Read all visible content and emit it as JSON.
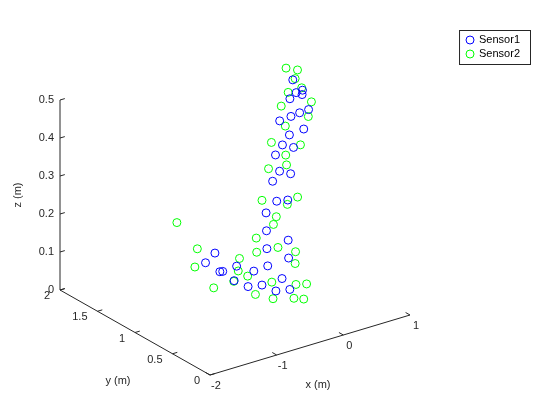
{
  "chart_data": {
    "type": "scatter3d",
    "xlabel": "x (m)",
    "ylabel": "y (m)",
    "zlabel": "z (m)",
    "xlim": [
      -2,
      1
    ],
    "xticks": [
      -2,
      -1,
      0,
      1
    ],
    "ylim": [
      0,
      2
    ],
    "yticks": [
      0,
      0.5,
      1,
      1.5,
      2
    ],
    "zlim": [
      0,
      0.5
    ],
    "zticks": [
      0,
      0.1,
      0.2,
      0.3,
      0.4,
      0.5
    ],
    "grid": false,
    "legend": "northeast",
    "series": [
      {
        "name": "Sensor1",
        "color": "#0000ff",
        "marker": "circle",
        "values": [
          [
            -0.3,
            1.2,
            0.02
          ],
          [
            -0.2,
            1.1,
            0.01
          ],
          [
            -0.1,
            1.0,
            0.02
          ],
          [
            0,
            0.9,
            0.01
          ],
          [
            0.1,
            0.8,
            0.02
          ],
          [
            -0.35,
            1.35,
            0.03
          ],
          [
            -0.25,
            1.4,
            0.02
          ],
          [
            -0.15,
            1.3,
            0.04
          ],
          [
            0,
            1.2,
            0.03
          ],
          [
            0.1,
            1.1,
            0.05
          ],
          [
            0.15,
            0.95,
            0.03
          ],
          [
            -0.4,
            1.5,
            0.04
          ],
          [
            -0.2,
            1.55,
            0.05
          ],
          [
            0.2,
            1.2,
            0.08
          ],
          [
            0.25,
            1.25,
            0.12
          ],
          [
            0.3,
            1.3,
            0.16
          ],
          [
            0.35,
            1.2,
            0.2
          ],
          [
            0.4,
            1.3,
            0.24
          ],
          [
            0.45,
            1.25,
            0.27
          ],
          [
            0.5,
            1.35,
            0.3
          ],
          [
            0.55,
            1.3,
            0.33
          ],
          [
            0.6,
            1.25,
            0.36
          ],
          [
            0.62,
            1.4,
            0.38
          ],
          [
            0.68,
            1.3,
            0.4
          ],
          [
            0.7,
            1.2,
            0.42
          ],
          [
            0.72,
            1.35,
            0.44
          ],
          [
            0.76,
            1.3,
            0.46
          ],
          [
            0.8,
            1.25,
            0.47
          ],
          [
            0.82,
            1.4,
            0.48
          ],
          [
            0.85,
            1.3,
            0.45
          ],
          [
            0.78,
            1.15,
            0.43
          ],
          [
            0.65,
            1.1,
            0.39
          ],
          [
            0.55,
            1.15,
            0.34
          ],
          [
            0.45,
            1.1,
            0.28
          ],
          [
            0.35,
            1.05,
            0.22
          ],
          [
            0.3,
            1.0,
            0.12
          ],
          [
            0.25,
            0.95,
            0.08
          ]
        ]
      },
      {
        "name": "Sensor2",
        "color": "#00ff00",
        "marker": "circle",
        "values": [
          [
            -0.5,
            1.3,
            0.0
          ],
          [
            -0.45,
            1.6,
            0.02
          ],
          [
            -0.3,
            1.7,
            0.05
          ],
          [
            -0.2,
            1.0,
            0.0
          ],
          [
            -0.1,
            0.85,
            0.0
          ],
          [
            0.05,
            0.7,
            0.01
          ],
          [
            0.2,
            0.7,
            0.0
          ],
          [
            0.25,
            0.85,
            0.02
          ],
          [
            -0.35,
            1.1,
            0.06
          ],
          [
            -0.15,
            1.15,
            0.03
          ],
          [
            -0.05,
            1.35,
            0.05
          ],
          [
            0.1,
            1.25,
            0.07
          ],
          [
            0.05,
            1.0,
            0.02
          ],
          [
            -0.25,
            1.25,
            0.01
          ],
          [
            -0.5,
            1.8,
            0.12
          ],
          [
            0.3,
            0.9,
            0.1
          ],
          [
            0.15,
            1.3,
            0.1
          ],
          [
            0.2,
            1.05,
            0.1
          ],
          [
            0.3,
            1.2,
            0.14
          ],
          [
            0.35,
            1.4,
            0.18
          ],
          [
            0.4,
            1.1,
            0.2
          ],
          [
            0.45,
            1.4,
            0.26
          ],
          [
            0.5,
            1.2,
            0.29
          ],
          [
            0.55,
            1.45,
            0.32
          ],
          [
            0.6,
            1.1,
            0.35
          ],
          [
            0.65,
            1.35,
            0.37
          ],
          [
            0.7,
            1.45,
            0.41
          ],
          [
            0.72,
            1.1,
            0.42
          ],
          [
            0.75,
            1.4,
            0.45
          ],
          [
            0.8,
            1.35,
            0.49
          ],
          [
            0.83,
            1.5,
            0.5
          ],
          [
            0.78,
            1.3,
            0.52
          ],
          [
            0.88,
            1.2,
            0.44
          ],
          [
            0.9,
            1.35,
            0.46
          ],
          [
            0.6,
            1.3,
            0.3
          ],
          [
            0.4,
            1.25,
            0.15
          ],
          [
            0.5,
            1.05,
            0.22
          ],
          [
            0.35,
            0.95,
            0.06
          ],
          [
            0.3,
            0.75,
            0.03
          ]
        ]
      }
    ]
  }
}
